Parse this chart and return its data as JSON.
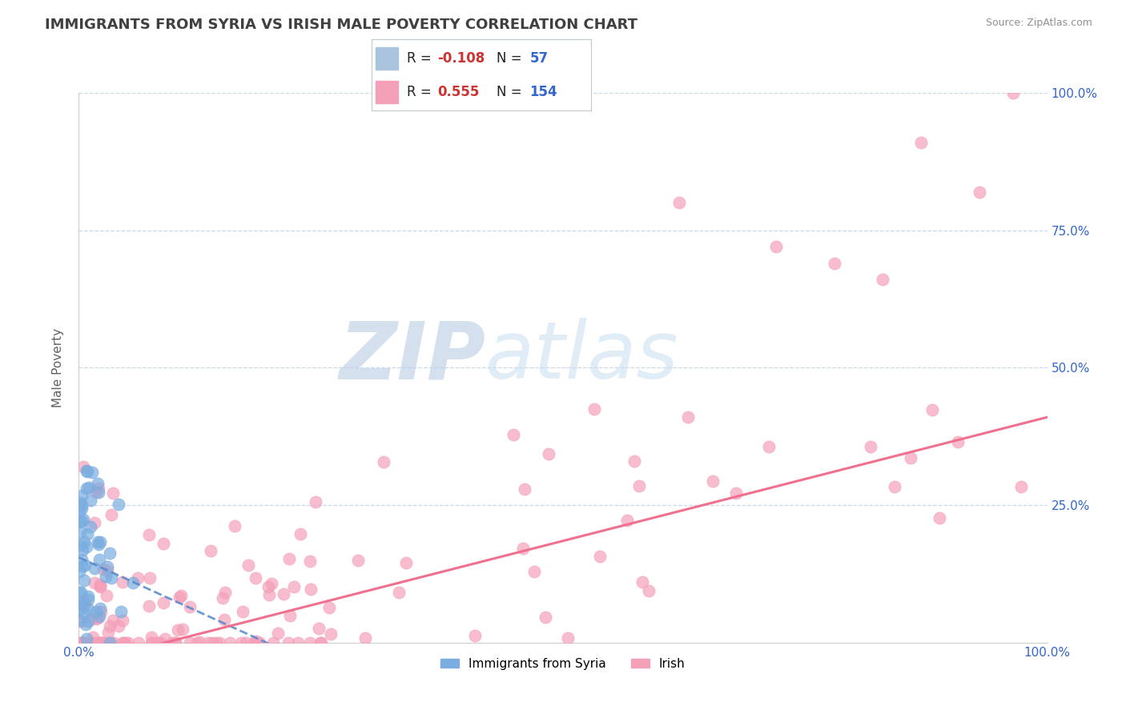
{
  "title": "IMMIGRANTS FROM SYRIA VS IRISH MALE POVERTY CORRELATION CHART",
  "source_text": "Source: ZipAtlas.com",
  "xlabel": "Immigrants from Syria",
  "ylabel": "Male Poverty",
  "xlim": [
    0.0,
    1.0
  ],
  "ylim": [
    0.0,
    1.0
  ],
  "x_ticks": [
    0.0,
    0.25,
    0.5,
    0.75,
    1.0
  ],
  "y_ticks": [
    0.25,
    0.5,
    0.75,
    1.0
  ],
  "x_tick_labels_shown": [
    "0.0%",
    "100.0%"
  ],
  "x_tick_labels_pos": [
    0.0,
    1.0
  ],
  "y_tick_labels": [
    "25.0%",
    "50.0%",
    "75.0%",
    "100.0%"
  ],
  "legend_R1": "-0.108",
  "legend_N1": "57",
  "legend_R2": "0.555",
  "legend_N2": "154",
  "blue_scatter_color": "#7aade0",
  "pink_scatter_color": "#f4a0b8",
  "blue_line_color": "#5588cc",
  "pink_line_color": "#f07090",
  "grid_color": "#c8d8e8",
  "watermark_text": "ZIPatlas",
  "watermark_color": "#c0d4e8",
  "background_color": "#ffffff",
  "title_color": "#404040",
  "title_fontsize": 13,
  "axis_label_color": "#606060",
  "tick_label_color": "#3366cc",
  "source_color": "#909090",
  "legend_box_color": "#aac4e0",
  "legend_pink_color": "#f4a0b8",
  "R_color": "#cc3333",
  "N_color": "#3366cc"
}
